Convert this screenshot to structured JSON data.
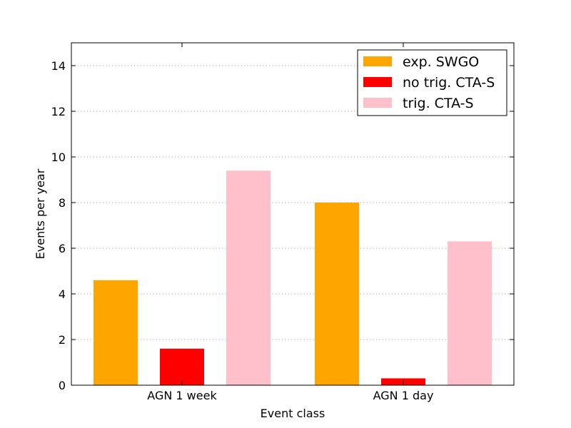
{
  "chart_data": {
    "type": "bar",
    "title": "",
    "xlabel": "Event class",
    "ylabel": "Events per year",
    "categories": [
      "AGN 1 week",
      "AGN 1 day"
    ],
    "series": [
      {
        "name": "exp. SWGO",
        "color": "#FFA500",
        "values": [
          4.6,
          8.0
        ]
      },
      {
        "name": "no trig. CTA-S",
        "color": "#FF0000",
        "values": [
          1.6,
          0.3
        ]
      },
      {
        "name": "trig. CTA-S",
        "color": "#FFC0CB",
        "values": [
          9.4,
          6.3
        ]
      }
    ],
    "ylim": [
      0,
      15
    ],
    "yticks": [
      "0",
      "2",
      "4",
      "6",
      "8",
      "10",
      "12",
      "14"
    ],
    "grid": "y-dotted",
    "legend_position": "top-right"
  }
}
